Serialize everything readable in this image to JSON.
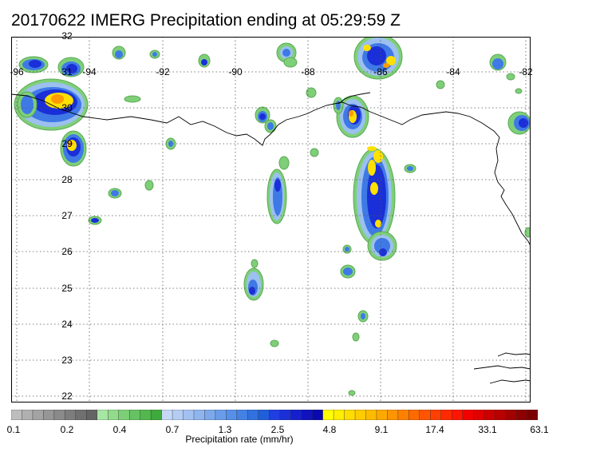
{
  "title": "20170622 IMERG Precipitation ending at 05:29:59 Z",
  "lon_labels": [
    "-96",
    "-94",
    "-92",
    "-90",
    "-88",
    "-86",
    "-84",
    "-82"
  ],
  "lat_labels": [
    "32",
    "31",
    "30",
    "29",
    "28",
    "27",
    "26",
    "25",
    "24",
    "23",
    "22"
  ],
  "colorbar": {
    "title": "Precipitation rate (mm/hr)",
    "tick_labels": [
      "0.1",
      "0.2",
      "0.4",
      "0.7",
      "1.3",
      "2.5",
      "4.8",
      "9.1",
      "17.4",
      "33.1",
      "63.1"
    ],
    "colors": [
      "#bdbdbd",
      "#b0b0b0",
      "#a3a3a3",
      "#969696",
      "#8a8a8a",
      "#7d7d7d",
      "#707070",
      "#646464",
      "#a8e6a3",
      "#92db8c",
      "#7ccf76",
      "#66c361",
      "#52b84d",
      "#3faa3c",
      "#c6d8f5",
      "#b5cdf3",
      "#a2c1f1",
      "#8fb5ee",
      "#7ca9eb",
      "#699dea",
      "#568fe8",
      "#4381e4",
      "#3171e0",
      "#1f5fdb",
      "#1f3fe0",
      "#1a2fd8",
      "#1520cc",
      "#1012be",
      "#0a08b0",
      "#ffff00",
      "#ffee00",
      "#ffdd00",
      "#ffcc00",
      "#ffbb00",
      "#ffa800",
      "#ff9500",
      "#ff8000",
      "#ff6a00",
      "#ff5500",
      "#ff4000",
      "#ff2a00",
      "#ff1500",
      "#f20000",
      "#e00000",
      "#cc0000",
      "#b80000",
      "#a30000",
      "#8f0000",
      "#7a0000"
    ]
  }
}
